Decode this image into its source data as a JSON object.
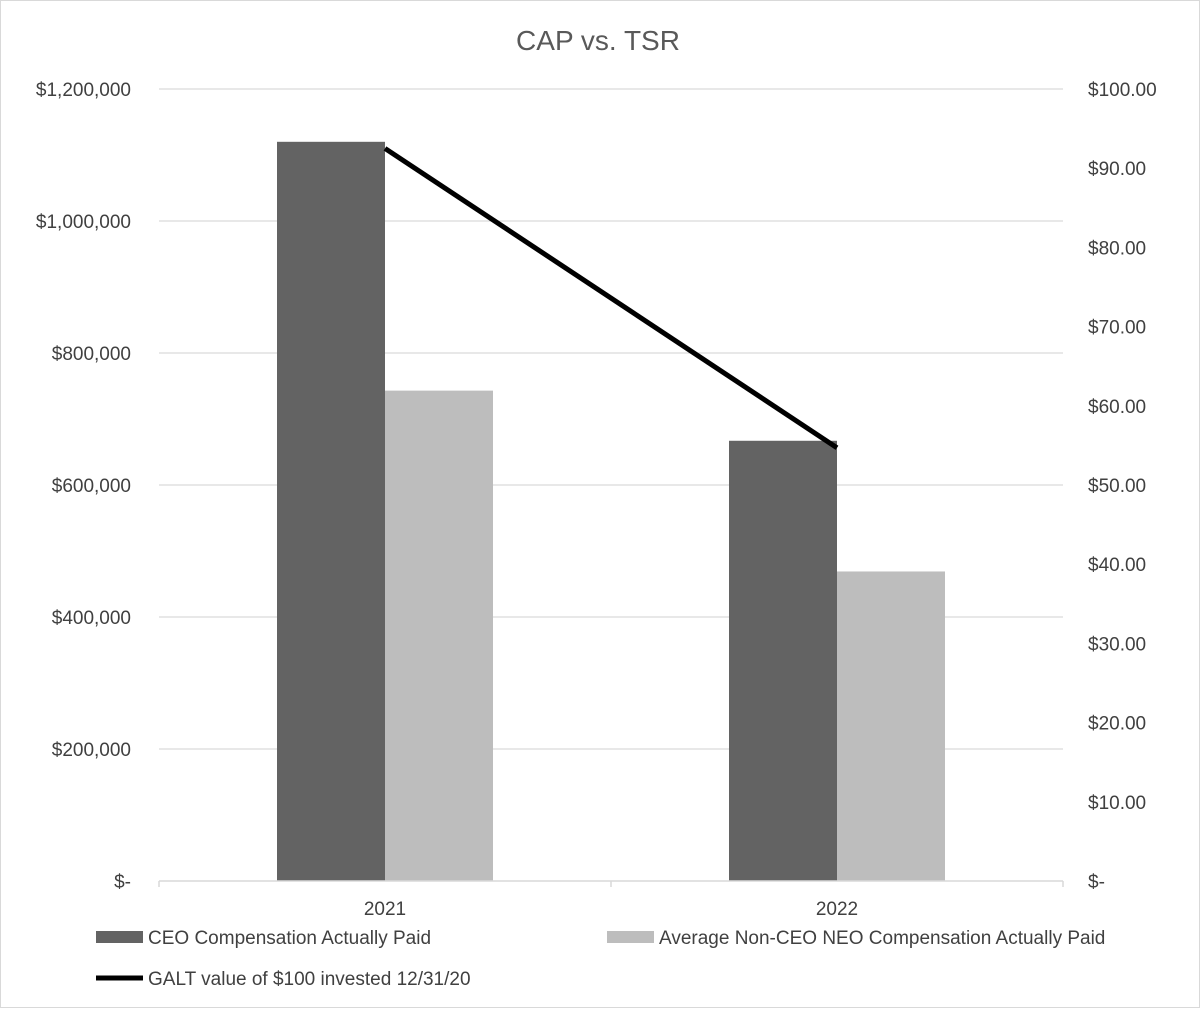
{
  "chart_data": {
    "type": "bar",
    "title": "CAP vs. TSR",
    "categories": [
      "2021",
      "2022"
    ],
    "series": [
      {
        "name": "CEO Compensation Actually Paid",
        "kind": "bar",
        "axis": "left",
        "color": "#636363",
        "values": [
          1120000,
          667000
        ]
      },
      {
        "name": "Average Non-CEO NEO Compensation Actually Paid",
        "kind": "bar",
        "axis": "left",
        "color": "#bdbdbd",
        "values": [
          743000,
          469000
        ]
      },
      {
        "name": "GALT value of $100 invested 12/31/20",
        "kind": "line",
        "axis": "right",
        "color": "#000000",
        "values": [
          92.5,
          54.7
        ]
      }
    ],
    "y_left": {
      "ylim": [
        0,
        1200000
      ],
      "ticks": [
        0,
        200000,
        400000,
        600000,
        800000,
        1000000,
        1200000
      ],
      "tick_labels": [
        "$-",
        "$200,000",
        "$400,000",
        "$600,000",
        "$800,000",
        "$1,000,000",
        "$1,200,000"
      ]
    },
    "y_right": {
      "ylim": [
        0,
        100
      ],
      "ticks": [
        0,
        10,
        20,
        30,
        40,
        50,
        60,
        70,
        80,
        90,
        100
      ],
      "tick_labels": [
        "$-",
        "$10.00",
        "$20.00",
        "$30.00",
        "$40.00",
        "$50.00",
        "$60.00",
        "$70.00",
        "$80.00",
        "$90.00",
        "$100.00"
      ]
    },
    "grid": true,
    "legend_position": "bottom"
  }
}
